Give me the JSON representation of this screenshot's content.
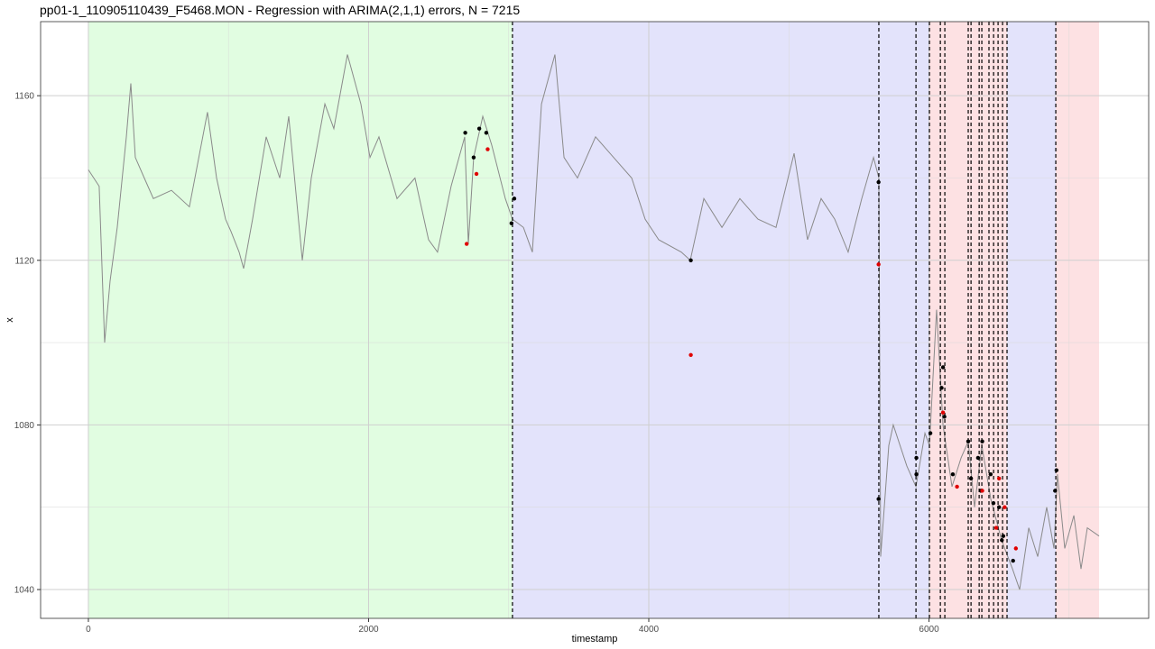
{
  "chart_data": {
    "type": "line",
    "title": "pp01-1_110905110439_F5468.MON - Regression with ARIMA(2,1,1) errors, N = 7215",
    "x_label": "timestamp",
    "y_label": "x",
    "xlim": [
      -341,
      7568
    ],
    "ylim": [
      1033,
      1178
    ],
    "xticks": [
      0,
      2000,
      4000,
      6000
    ],
    "yticks": [
      1040,
      1080,
      1120,
      1160
    ],
    "x_minor_breaks": [
      1000,
      3000,
      5000,
      7000
    ],
    "y_minor_breaks": [
      1060,
      1100,
      1140
    ],
    "grid": true,
    "regions": [
      {
        "start": 0,
        "end": 3027,
        "color": "#e1fde1"
      },
      {
        "start": 3027,
        "end": 6003,
        "color": "#e3e3fb"
      },
      {
        "start": 6003,
        "end": 6557,
        "color": "#fde1e3"
      },
      {
        "start": 6557,
        "end": 6905,
        "color": "#e3e3fb"
      },
      {
        "start": 6905,
        "end": 7214,
        "color": "#fde1e3"
      }
    ],
    "vlines": [
      3027,
      5642,
      5907,
      6003,
      6081,
      6113,
      6280,
      6300,
      6358,
      6377,
      6428,
      6461,
      6493,
      6525,
      6557,
      6905
    ],
    "series": [
      {
        "color": "#8a8a8a",
        "x": [
          0,
          77,
          116,
          155,
          206,
          271,
          303,
          335,
          399,
          464,
          593,
          721,
          850,
          915,
          979,
          1018,
          1076,
          1108,
          1172,
          1269,
          1366,
          1430,
          1527,
          1591,
          1688,
          1752,
          1849,
          1881,
          1945,
          2010,
          2074,
          2203,
          2331,
          2428,
          2492,
          2589,
          2686,
          2712,
          2750,
          2815,
          2879,
          2976,
          3027,
          3105,
          3169,
          3234,
          3330,
          3395,
          3491,
          3620,
          3749,
          3878,
          3974,
          4071,
          4232,
          4296,
          4393,
          4522,
          4650,
          4779,
          4908,
          5037,
          5133,
          5230,
          5327,
          5423,
          5520,
          5604,
          5642,
          5655,
          5713,
          5745,
          5842,
          5907,
          5971,
          6003,
          6054,
          6100,
          6164,
          6229,
          6280,
          6325,
          6377,
          6441,
          6518,
          6596,
          6647,
          6712,
          6776,
          6840,
          6892,
          6917,
          6969,
          7034,
          7085,
          7130,
          7214
        ],
        "values": [
          1142,
          1138,
          1100,
          1115,
          1128,
          1150,
          1163,
          1145,
          1140,
          1135,
          1137,
          1133,
          1156,
          1140,
          1130,
          1127,
          1122,
          1118,
          1130,
          1150,
          1140,
          1155,
          1120,
          1140,
          1158,
          1152,
          1170,
          1166,
          1158,
          1145,
          1150,
          1135,
          1140,
          1125,
          1122,
          1138,
          1150,
          1124,
          1145,
          1155,
          1148,
          1135,
          1130,
          1128,
          1122,
          1158,
          1170,
          1145,
          1140,
          1150,
          1145,
          1140,
          1130,
          1125,
          1122,
          1120,
          1135,
          1128,
          1135,
          1130,
          1128,
          1146,
          1125,
          1135,
          1130,
          1122,
          1135,
          1145,
          1140,
          1048,
          1075,
          1080,
          1070,
          1065,
          1078,
          1075,
          1108,
          1080,
          1065,
          1072,
          1076,
          1060,
          1075,
          1062,
          1052,
          1045,
          1040,
          1055,
          1048,
          1060,
          1050,
          1068,
          1050,
          1058,
          1045,
          1055,
          1053
        ]
      }
    ],
    "points": [
      {
        "color": "#000000",
        "x": [
          2690,
          2750,
          2790,
          2840,
          3020,
          3040,
          4300,
          5640,
          5640,
          5910,
          5910,
          6010,
          6090,
          6100,
          6110,
          6170,
          6280,
          6300,
          6350,
          6370,
          6380,
          6440,
          6460,
          6500,
          6520,
          6530,
          6600,
          6900,
          6910
        ],
        "values": [
          1151,
          1145,
          1152,
          1151,
          1129,
          1135,
          1120,
          1139,
          1062,
          1068,
          1072,
          1078,
          1089,
          1094,
          1082,
          1068,
          1076,
          1067,
          1072,
          1064,
          1076,
          1068,
          1061,
          1060,
          1052,
          1053,
          1047,
          1064,
          1069
        ]
      },
      {
        "color": "#e00000",
        "x": [
          2700,
          2770,
          2850,
          4300,
          5640,
          6100,
          6200,
          6380,
          6480,
          6500,
          6540,
          6620
        ],
        "values": [
          1124,
          1141,
          1147,
          1097,
          1119,
          1083,
          1065,
          1064,
          1055,
          1067,
          1060,
          1050
        ]
      }
    ]
  }
}
